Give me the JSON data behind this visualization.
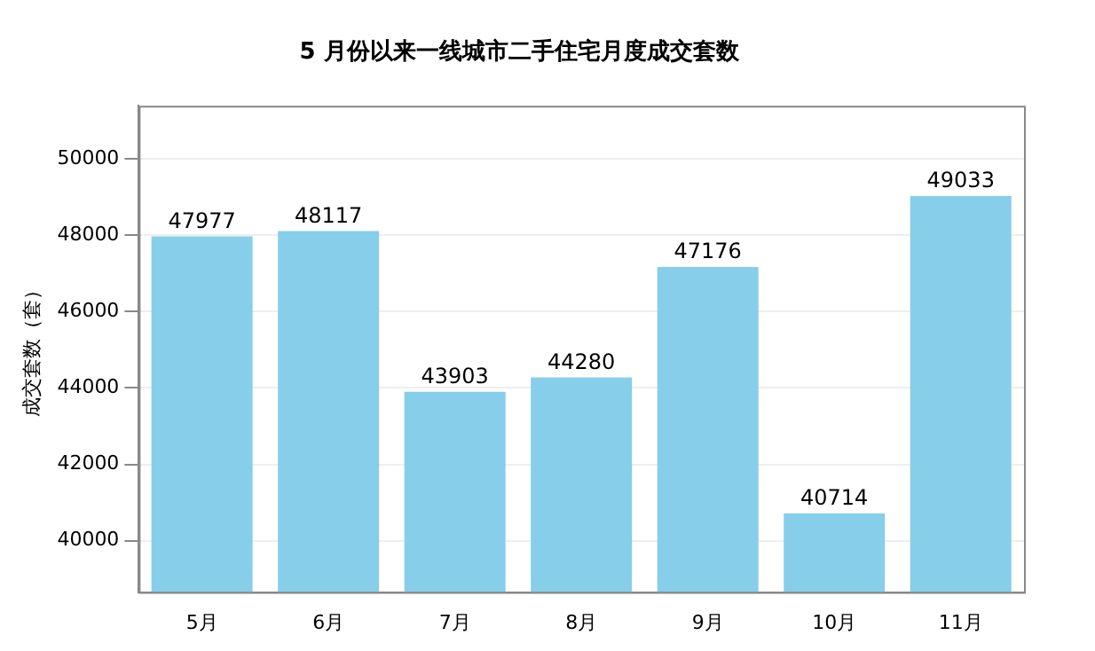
{
  "chart_data": {
    "type": "bar",
    "title": "5 月份以来一线城市二手住宅月度成交套数",
    "ylabel": "成交套数（套）",
    "categories": [
      "5月",
      "6月",
      "7月",
      "8月",
      "9月",
      "10月",
      "11月"
    ],
    "values": [
      47977,
      48117,
      43903,
      44280,
      47176,
      40714,
      49033
    ],
    "color": "#87ceeb",
    "ylim": [
      38650,
      51400
    ],
    "yticks": [
      40000,
      42000,
      44000,
      46000,
      48000,
      50000
    ],
    "grid": "y",
    "data_labels": true,
    "legend": false
  }
}
